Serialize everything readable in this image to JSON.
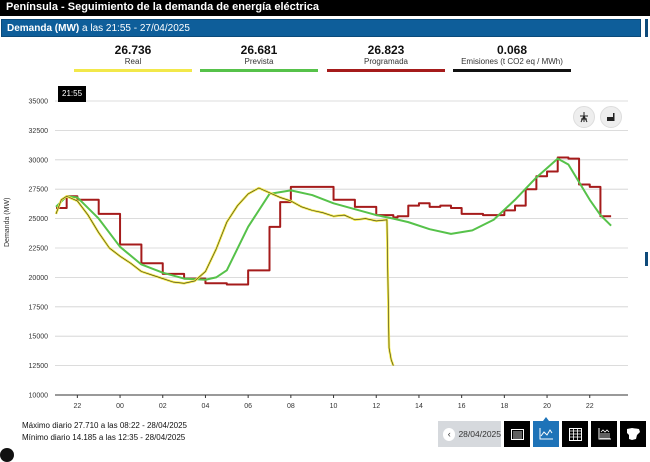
{
  "header": {
    "title": "Península  -  Seguimiento de la demanda de energía eléctrica"
  },
  "subheader": {
    "prefix": "Demanda (MW)",
    "suffix": " a las 21:55 - 27/04/2025"
  },
  "metrics": [
    {
      "value": "26.736",
      "label": "Real",
      "color": "#f2e84a"
    },
    {
      "value": "26.681",
      "label": "Prevista",
      "color": "#56c24a"
    },
    {
      "value": "26.823",
      "label": "Programada",
      "color": "#a51b1b"
    },
    {
      "value": "0.068",
      "label": "Emisiones (t CO2 eq / MWh)",
      "color": "#111111"
    }
  ],
  "tooltip": "21:55",
  "chart_icons": [
    "wind-tower-icon",
    "factory-icon"
  ],
  "stats": {
    "max": "Máximo diario 27.710 a las 08:22 - 28/04/2025",
    "min": "Mínimo diario 14.185 a las 12:35 - 28/04/2025"
  },
  "toolbar": {
    "date": "28/04/2025",
    "buttons": [
      "calendar-icon",
      "line-chart-icon",
      "table-icon",
      "stacked-chart-icon",
      "spain-map-icon"
    ],
    "active": 1
  },
  "chart_data": {
    "type": "line",
    "title": "Demanda (MW) a las 21:55 - 27/04/2025",
    "xlabel": "",
    "ylabel": "Demanda (MW)",
    "ylim": [
      10000,
      35000
    ],
    "yticks": [
      10000,
      12500,
      15000,
      17500,
      20000,
      22500,
      25000,
      27500,
      30000,
      32500,
      35000
    ],
    "xticks": [
      "22",
      "00",
      "02",
      "04",
      "06",
      "08",
      "10",
      "12",
      "14",
      "16",
      "18",
      "20",
      "22"
    ],
    "grid": true,
    "legend_position": "top",
    "x_unit": "hours since 21:00 (27/04)",
    "series": [
      {
        "name": "Real",
        "color": "#f2e84a",
        "x": [
          0.0,
          0.25,
          0.5,
          0.75,
          1.0,
          1.5,
          2.0,
          2.5,
          3.0,
          3.5,
          4.0,
          4.5,
          5.0,
          5.5,
          6.0,
          6.5,
          7.0,
          7.5,
          8.0,
          8.5,
          9.0,
          9.5,
          10.0,
          10.5,
          11.0,
          11.5,
          12.0,
          12.5,
          13.0,
          13.5,
          14.0,
          14.5,
          15.0,
          15.5,
          15.6,
          15.7,
          15.8
        ],
        "values": [
          25400,
          26600,
          26900,
          26700,
          26500,
          25300,
          23800,
          22500,
          21800,
          21200,
          20500,
          20200,
          19900,
          19600,
          19500,
          19700,
          20500,
          22400,
          24700,
          26100,
          27100,
          27600,
          27200,
          26800,
          26500,
          26000,
          25700,
          25500,
          25200,
          25300,
          24900,
          25000,
          24800,
          24900,
          14000,
          13000,
          12500
        ]
      },
      {
        "name": "Prevista",
        "color": "#56c24a",
        "x": [
          0.0,
          0.5,
          1.0,
          2.0,
          3.0,
          4.0,
          5.0,
          6.0,
          7.0,
          7.5,
          8.0,
          9.0,
          10.0,
          11.0,
          12.0,
          13.0,
          14.0,
          15.0,
          15.8,
          16.5,
          17.5,
          18.5,
          19.5,
          20.5,
          21.5,
          22.5,
          23.5,
          24.0,
          24.5,
          25.0,
          25.5,
          26.0
        ],
        "values": [
          26000,
          26900,
          26800,
          25000,
          22600,
          21100,
          20400,
          19900,
          19800,
          20000,
          20600,
          24300,
          27100,
          27400,
          27000,
          26300,
          25800,
          25300,
          25000,
          24700,
          24100,
          23700,
          24000,
          24900,
          26600,
          28500,
          30100,
          29600,
          28100,
          26600,
          25300,
          24400
        ]
      },
      {
        "name": "Programada",
        "color": "#a51b1b",
        "x": [
          0.0,
          0.5,
          1.0,
          2.0,
          3.0,
          4.0,
          5.0,
          6.0,
          7.0,
          8.0,
          9.0,
          10.0,
          10.5,
          11.0,
          12.0,
          13.0,
          14.0,
          15.0,
          15.8,
          16.0,
          16.5,
          17.0,
          17.5,
          18.0,
          18.5,
          19.0,
          20.0,
          21.0,
          21.5,
          22.0,
          22.5,
          23.0,
          23.5,
          24.0,
          24.5,
          25.0,
          25.5,
          26.0
        ],
        "values": [
          25900,
          26900,
          26600,
          25400,
          22800,
          21200,
          20300,
          19900,
          19500,
          19400,
          20600,
          24300,
          26400,
          27700,
          27700,
          26600,
          26000,
          25300,
          25100,
          25200,
          26100,
          26300,
          26000,
          26100,
          25900,
          25400,
          25300,
          25700,
          26100,
          27500,
          28600,
          29000,
          30200,
          30100,
          27900,
          27700,
          25200,
          25200
        ]
      }
    ]
  }
}
